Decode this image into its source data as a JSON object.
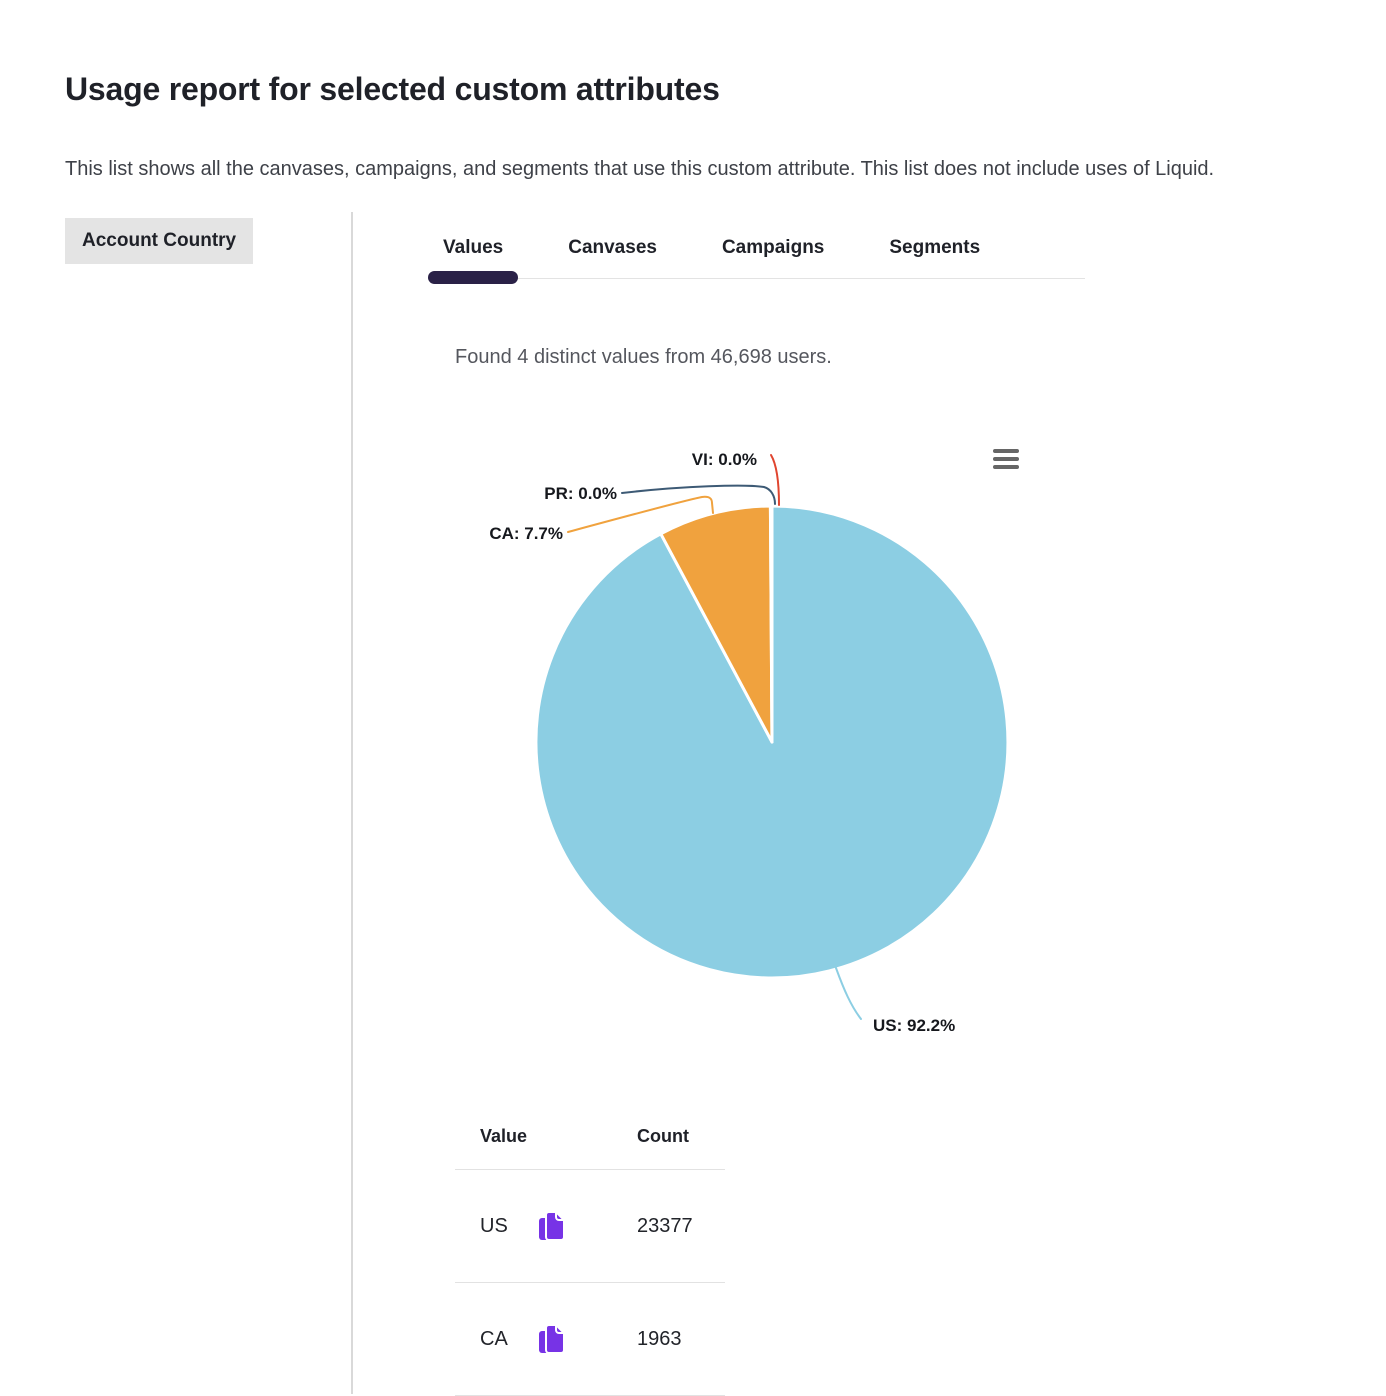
{
  "page": {
    "title": "Usage report for selected custom attributes",
    "description": "This list shows all the canvases, campaigns, and segments that use this custom attribute. This list does not include uses of Liquid."
  },
  "attribute_chip": {
    "label": "Account Country"
  },
  "tabs": [
    {
      "label": "Values",
      "active": true
    },
    {
      "label": "Canvases",
      "active": false
    },
    {
      "label": "Campaigns",
      "active": false
    },
    {
      "label": "Segments",
      "active": false
    }
  ],
  "summary": "Found 4 distinct values from 46,698 users.",
  "chart_data": {
    "type": "pie",
    "title": "",
    "legend": "none",
    "start_angle": "top",
    "direction": "clockwise",
    "slices": [
      {
        "label": "US",
        "pct": 92.2,
        "display": "US: 92.2%",
        "color": "#8CCEE3"
      },
      {
        "label": "CA",
        "pct": 7.7,
        "display": "CA: 7.7%",
        "color": "#F0A23E"
      },
      {
        "label": "PR",
        "pct": 0.0,
        "display": "PR: 0.0%",
        "color": "#3D5A75"
      },
      {
        "label": "VI",
        "pct": 0.0,
        "display": "VI: 0.0%",
        "color": "#E0452F"
      }
    ]
  },
  "table": {
    "columns": [
      "Value",
      "Count"
    ],
    "rows": [
      {
        "value": "US",
        "count": "23377"
      },
      {
        "value": "CA",
        "count": "1963"
      }
    ]
  },
  "icons": {
    "chart_menu": "hamburger-icon",
    "copy": "copy-icon"
  },
  "colors": {
    "active_tab": "#2A2147",
    "copy_icon": "#7733E6",
    "chip_bg": "#E4E4E4",
    "divider": "#D9D9D9",
    "text_dark": "#1F2128",
    "text_muted": "#55575E",
    "hamburger": "#666666"
  }
}
